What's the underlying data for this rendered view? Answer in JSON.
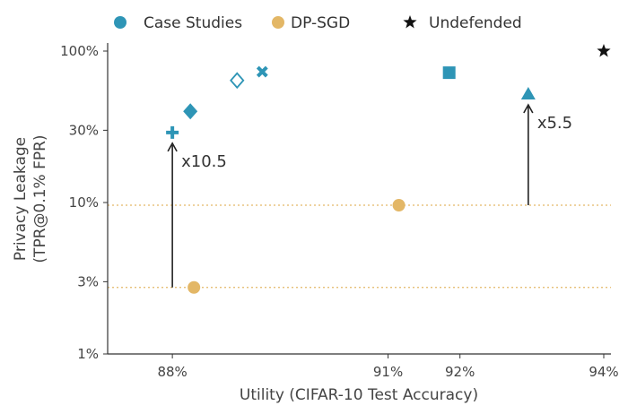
{
  "chart_data": {
    "type": "scatter",
    "xlabel": "Utility (CIFAR-10 Test Accuracy)",
    "ylabel_line1": "Privacy Leakage",
    "ylabel_line2": "(TPR@0.1% FPR)",
    "xlim": [
      87.1,
      94.1
    ],
    "ylim": [
      1,
      100
    ],
    "yscale": "log",
    "xticks": [
      88,
      91,
      92,
      94
    ],
    "xtick_labels": [
      "88%",
      "91%",
      "92%",
      "94%"
    ],
    "yticks": [
      1,
      3,
      10,
      30,
      100
    ],
    "ytick_labels": [
      "1%",
      "3%",
      "10%",
      "30%",
      "100%"
    ],
    "grid": false,
    "legend_position": "top",
    "legend": [
      {
        "label": "Case Studies",
        "marker": "circle",
        "color": "#2e95b6"
      },
      {
        "label": "DP-SGD",
        "marker": "circle",
        "color": "#e3b766"
      },
      {
        "label": "Undefended",
        "marker": "star",
        "color": "#111111"
      }
    ],
    "series": [
      {
        "name": "Case Studies",
        "color": "#2e95b6",
        "points": [
          {
            "x": 88.0,
            "y": 29,
            "marker": "plus"
          },
          {
            "x": 88.25,
            "y": 40,
            "marker": "diamond"
          },
          {
            "x": 88.9,
            "y": 64,
            "marker": "diamond-open"
          },
          {
            "x": 89.25,
            "y": 73,
            "marker": "x"
          },
          {
            "x": 91.85,
            "y": 72,
            "marker": "square"
          },
          {
            "x": 92.95,
            "y": 52,
            "marker": "triangle"
          }
        ]
      },
      {
        "name": "DP-SGD",
        "color": "#e3b766",
        "points": [
          {
            "x": 88.3,
            "y": 2.75,
            "marker": "circle"
          },
          {
            "x": 91.15,
            "y": 9.6,
            "marker": "circle"
          }
        ]
      },
      {
        "name": "Undefended",
        "color": "#111111",
        "points": [
          {
            "x": 94.0,
            "y": 100,
            "marker": "star"
          }
        ]
      }
    ],
    "reference_lines": [
      {
        "y": 2.75,
        "color": "#e3b766",
        "style": "dotted"
      },
      {
        "y": 9.6,
        "color": "#e3b766",
        "style": "dotted"
      }
    ],
    "arrows": [
      {
        "x": 88.0,
        "y_from": 2.75,
        "y_to": 29,
        "label": "x10.5"
      },
      {
        "x": 92.95,
        "y_from": 9.6,
        "y_to": 52,
        "label": "x5.5"
      }
    ]
  }
}
